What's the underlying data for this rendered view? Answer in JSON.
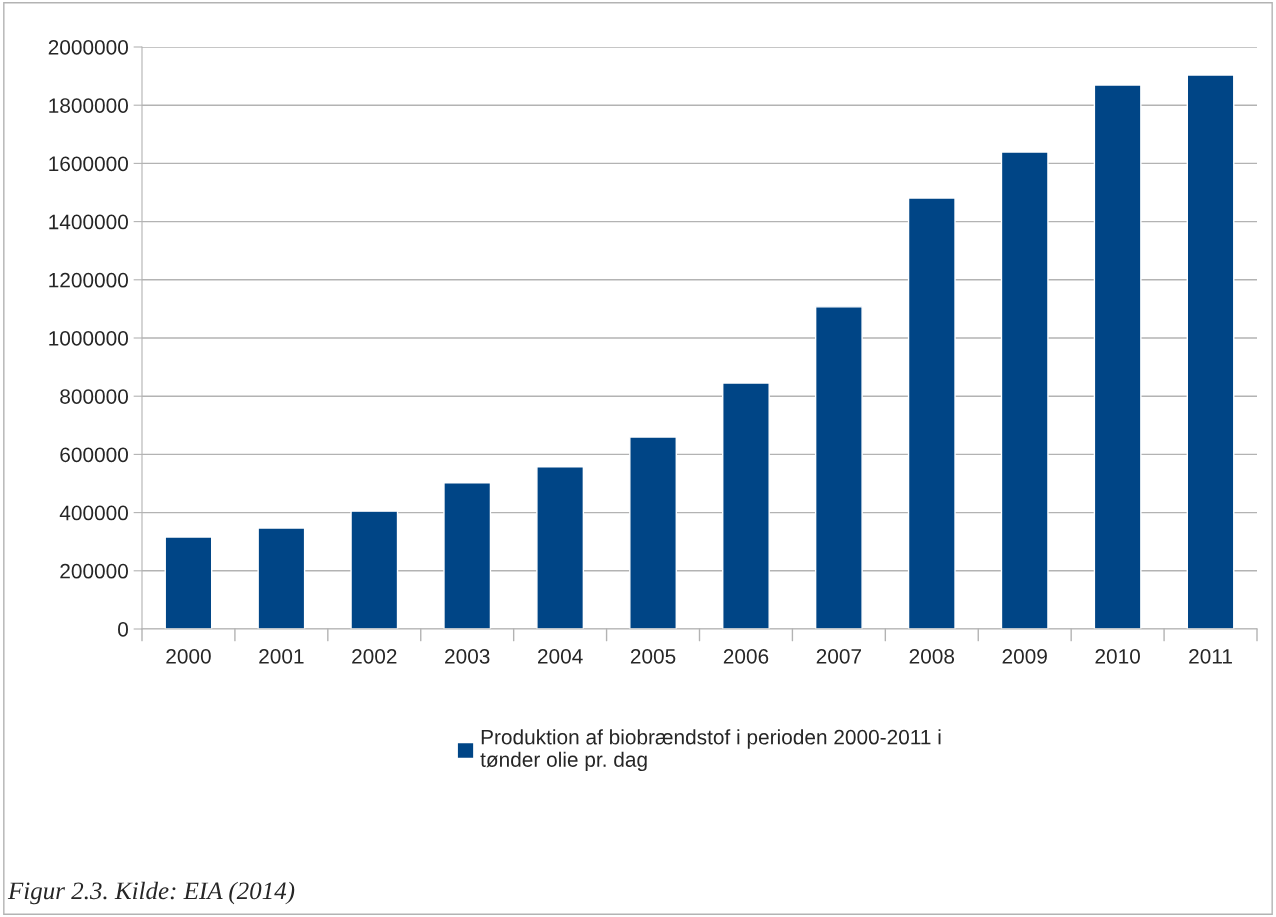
{
  "chart_data": {
    "type": "bar",
    "categories": [
      "2000",
      "2001",
      "2002",
      "2003",
      "2004",
      "2005",
      "2006",
      "2007",
      "2008",
      "2009",
      "2010",
      "2011"
    ],
    "series": [
      {
        "name": "Produktion af biobrændstof i perioden 2000-2011 i\ntønder olie pr. dag",
        "color": "#004586",
        "values": [
          316000,
          347000,
          405000,
          502000,
          557000,
          660000,
          845000,
          1107000,
          1481000,
          1639000,
          1869000,
          1904000
        ]
      }
    ],
    "ylim": [
      0,
      2000000
    ],
    "yticks": [
      0,
      200000,
      400000,
      600000,
      800000,
      1000000,
      1200000,
      1400000,
      1600000,
      1800000,
      2000000
    ],
    "grid": "y",
    "legend": "bottom",
    "annotations": [
      "Figur 2.3. Kilde: EIA (2014)"
    ]
  }
}
